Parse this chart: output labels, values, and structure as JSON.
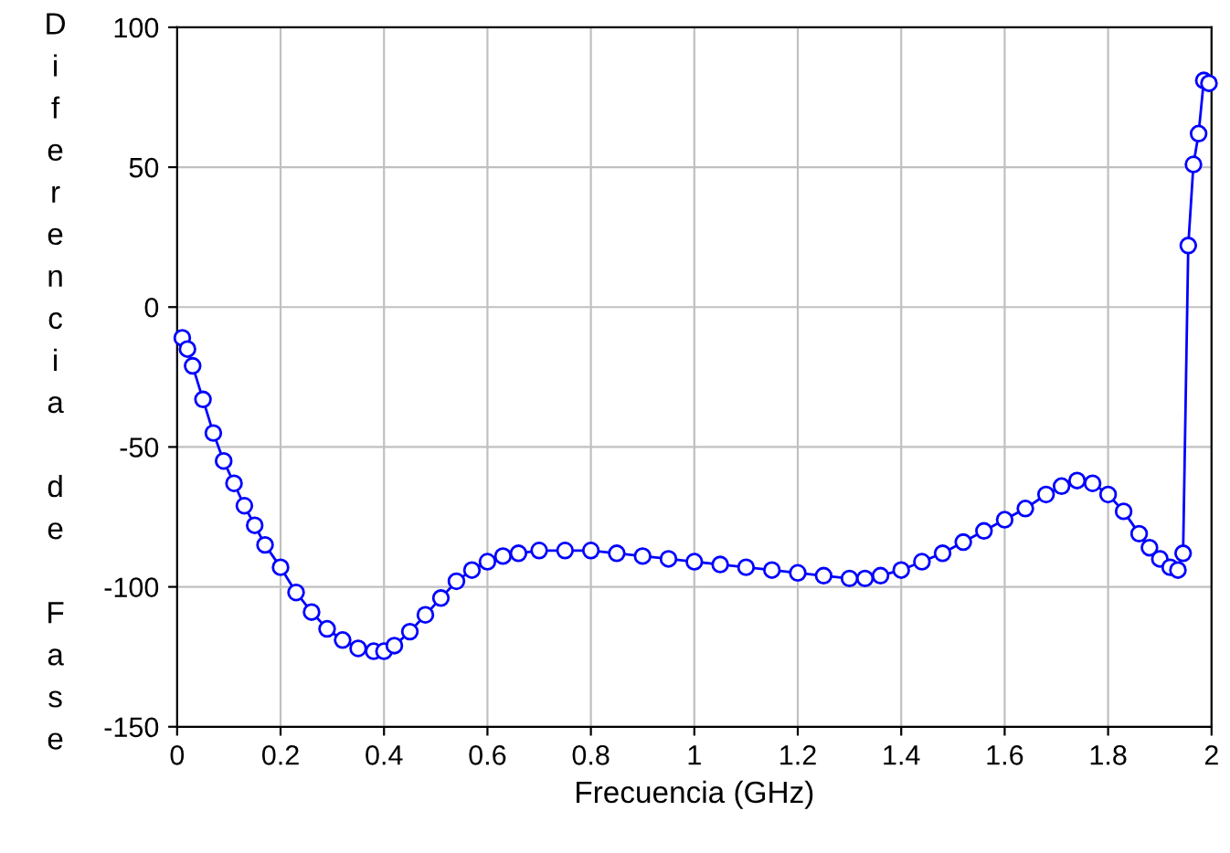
{
  "chart_data": {
    "type": "line",
    "xlabel": "Frecuencia (GHz)",
    "ylabel": "Diferencia de Fase",
    "xlim": [
      0,
      2
    ],
    "xticks": [
      0,
      0.2,
      0.4,
      0.6,
      0.8,
      1,
      1.2,
      1.4,
      1.6,
      1.8,
      2
    ],
    "ylim": [
      -150,
      100
    ],
    "yticks": [
      -150,
      -100,
      -50,
      0,
      50,
      100
    ],
    "grid": true,
    "marker": "circle",
    "line_style": "solid",
    "series": [
      {
        "color": "#0000ff",
        "x": [
          0.01,
          0.02,
          0.03,
          0.05,
          0.07,
          0.09,
          0.11,
          0.13,
          0.15,
          0.17,
          0.2,
          0.23,
          0.26,
          0.29,
          0.32,
          0.35,
          0.38,
          0.4,
          0.42,
          0.45,
          0.48,
          0.51,
          0.54,
          0.57,
          0.6,
          0.63,
          0.66,
          0.7,
          0.75,
          0.8,
          0.85,
          0.9,
          0.95,
          1.0,
          1.05,
          1.1,
          1.15,
          1.2,
          1.25,
          1.3,
          1.33,
          1.36,
          1.4,
          1.44,
          1.48,
          1.52,
          1.56,
          1.6,
          1.64,
          1.68,
          1.71,
          1.74,
          1.77,
          1.8,
          1.83,
          1.86,
          1.88,
          1.9,
          1.92,
          1.935,
          1.945,
          1.955,
          1.965,
          1.975,
          1.985,
          1.995
        ],
        "values": [
          -11,
          -15,
          -21,
          -33,
          -45,
          -55,
          -63,
          -71,
          -78,
          -85,
          -93,
          -102,
          -109,
          -115,
          -119,
          -122,
          -123,
          -123,
          -121,
          -116,
          -110,
          -104,
          -98,
          -94,
          -91,
          -89,
          -88,
          -87,
          -87,
          -87,
          -88,
          -89,
          -90,
          -91,
          -92,
          -93,
          -94,
          -95,
          -96,
          -97,
          -97,
          -96,
          -94,
          -91,
          -88,
          -84,
          -80,
          -76,
          -72,
          -67,
          -64,
          -62,
          -63,
          -67,
          -73,
          -81,
          -86,
          -90,
          -93,
          -94,
          -88,
          22,
          51,
          62,
          81,
          80
        ]
      }
    ]
  }
}
